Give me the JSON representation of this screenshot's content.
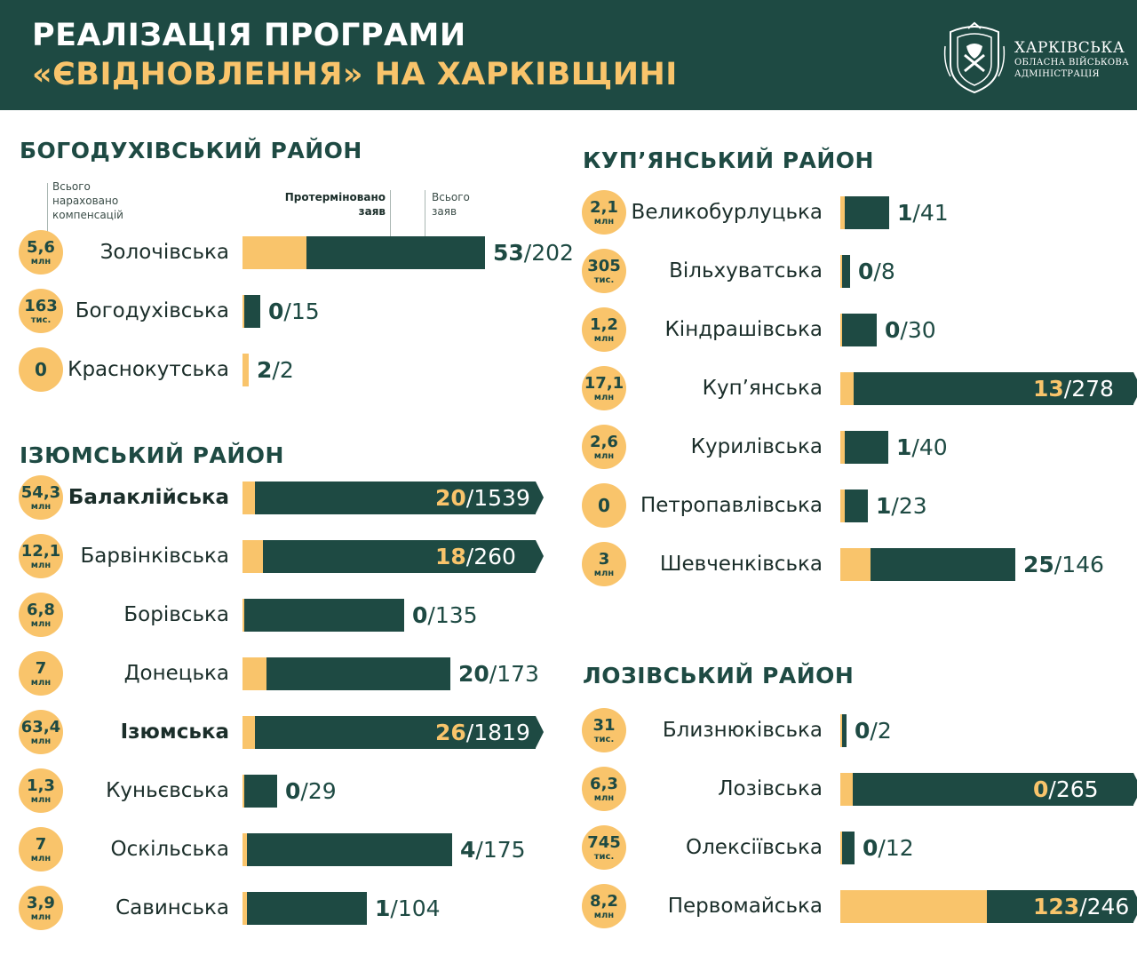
{
  "header": {
    "title_line1": "РЕАЛІЗАЦІЯ ПРОГРАМИ",
    "title_line2": "«ЄВІДНОВЛЕННЯ» НА ХАРКІВЩИНІ",
    "logo_line1": "ХАРКІВСЬКА",
    "logo_line2": "ОБЛАСНА ВІЙСЬКОВА",
    "logo_line3": "АДМІНІСТРАЦІЯ"
  },
  "legend": {
    "compensation": "Всього нараховано компенсацій",
    "overdue": "Протерміновано заяв",
    "total": "Всього заяв"
  },
  "colors": {
    "primary": "#1e4a43",
    "accent": "#f9c46b",
    "text": "#1b2e2a"
  },
  "chart_data": {
    "type": "bar",
    "title": "Реалізація програми «єВідновлення» на Харківщині",
    "series_names": [
      "Протерміновано заяв",
      "Всього заяв",
      "Всього нараховано компенсацій"
    ],
    "districts": [
      {
        "name": "БОГОДУХІВСЬКИЙ РАЙОН",
        "communities": [
          {
            "name": "Золочівська",
            "comp_value": "5,6",
            "comp_unit": "млн",
            "overdue": 53,
            "total": 202
          },
          {
            "name": "Богодухівська",
            "comp_value": "163",
            "comp_unit": "тис.",
            "overdue": 0,
            "total": 15
          },
          {
            "name": "Краснокутська",
            "comp_value": "0",
            "comp_unit": "",
            "overdue": 2,
            "total": 2
          }
        ]
      },
      {
        "name": "ІЗЮМСЬКИЙ РАЙОН",
        "communities": [
          {
            "name": "Балаклійська",
            "comp_value": "54,3",
            "comp_unit": "млн",
            "overdue": 20,
            "total": 1539,
            "highlight": true
          },
          {
            "name": "Барвінківська",
            "comp_value": "12,1",
            "comp_unit": "млн",
            "overdue": 18,
            "total": 260
          },
          {
            "name": "Борівська",
            "comp_value": "6,8",
            "comp_unit": "млн",
            "overdue": 0,
            "total": 135
          },
          {
            "name": "Донецька",
            "comp_value": "7",
            "comp_unit": "млн",
            "overdue": 20,
            "total": 173
          },
          {
            "name": "Ізюмська",
            "comp_value": "63,4",
            "comp_unit": "млн",
            "overdue": 26,
            "total": 1819,
            "highlight": true
          },
          {
            "name": "Куньєвська",
            "comp_value": "1,3",
            "comp_unit": "млн",
            "overdue": 0,
            "total": 29
          },
          {
            "name": "Оскільська",
            "comp_value": "7",
            "comp_unit": "млн",
            "overdue": 4,
            "total": 175
          },
          {
            "name": "Савинська",
            "comp_value": "3,9",
            "comp_unit": "млн",
            "overdue": 1,
            "total": 104
          }
        ]
      },
      {
        "name": "КУП’ЯНСЬКИЙ РАЙОН",
        "communities": [
          {
            "name": "Великобурлуцька",
            "comp_value": "2,1",
            "comp_unit": "млн",
            "overdue": 1,
            "total": 41
          },
          {
            "name": "Вільхуватська",
            "comp_value": "305",
            "comp_unit": "тис.",
            "overdue": 0,
            "total": 8
          },
          {
            "name": "Кіндрашівська",
            "comp_value": "1,2",
            "comp_unit": "млн",
            "overdue": 0,
            "total": 30
          },
          {
            "name": "Куп’янська",
            "comp_value": "17,1",
            "comp_unit": "млн",
            "overdue": 13,
            "total": 278
          },
          {
            "name": "Курилівська",
            "comp_value": "2,6",
            "comp_unit": "млн",
            "overdue": 1,
            "total": 40
          },
          {
            "name": "Петропавлівська",
            "comp_value": "0",
            "comp_unit": "",
            "overdue": 1,
            "total": 23
          },
          {
            "name": "Шевченківська",
            "comp_value": "3",
            "comp_unit": "млн",
            "overdue": 25,
            "total": 146
          }
        ]
      },
      {
        "name": "ЛОЗІВСЬКИЙ РАЙОН",
        "communities": [
          {
            "name": "Близнюківська",
            "comp_value": "31",
            "comp_unit": "тис.",
            "overdue": 0,
            "total": 2
          },
          {
            "name": "Лозівська",
            "comp_value": "6,3",
            "comp_unit": "млн",
            "overdue": 0,
            "total": 265
          },
          {
            "name": "Олексіївська",
            "comp_value": "745",
            "comp_unit": "тис.",
            "overdue": 0,
            "total": 12
          },
          {
            "name": "Первомайська",
            "comp_value": "8,2",
            "comp_unit": "млн",
            "overdue": 123,
            "total": 246
          }
        ]
      }
    ]
  }
}
